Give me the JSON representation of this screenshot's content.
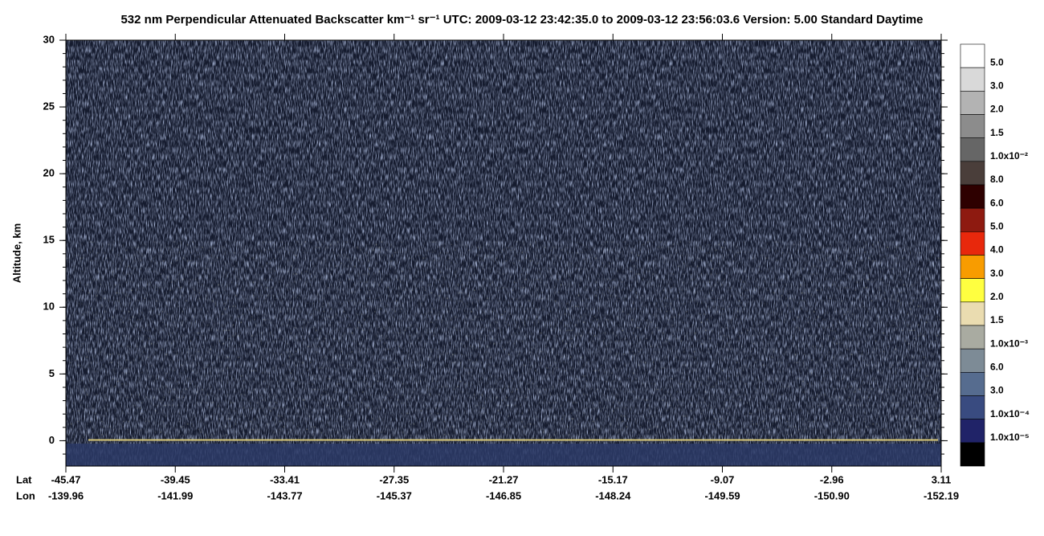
{
  "chart_data": {
    "type": "heatmap",
    "title": "532 nm Perpendicular Attenuated Backscatter km⁻¹ sr⁻¹  UTC: 2009-03-12 23:42:35.0 to 2009-03-12 23:56:03.6  Version: 5.00 Standard Daytime",
    "y_label": "Altitude, km",
    "ylim": [
      -1.9,
      30
    ],
    "yticks": [
      0,
      5,
      10,
      15,
      20,
      25,
      30
    ],
    "x_rows": [
      {
        "name": "Lat",
        "labels": [
          "-45.47",
          "-39.45",
          "-33.41",
          "-27.35",
          "-21.27",
          "-15.17",
          "-9.07",
          "-2.96",
          "3.11"
        ]
      },
      {
        "name": "Lon",
        "labels": [
          "-139.96",
          "-141.99",
          "-143.77",
          "-145.37",
          "-146.85",
          "-148.24",
          "-149.59",
          "-150.90",
          "-152.19"
        ]
      }
    ],
    "colorbar": {
      "colors": [
        "#ffffff",
        "#d9d9d9",
        "#b3b3b3",
        "#8c8c8c",
        "#666666",
        "#4a3e3a",
        "#2e0000",
        "#8e1a10",
        "#e8280c",
        "#f89c00",
        "#ffff40",
        "#eadcb0",
        "#a9aba1",
        "#7d8b96",
        "#566c8f",
        "#394b80",
        "#202368",
        "#000000"
      ],
      "labels": [
        "5.0",
        "3.0",
        "2.0",
        "1.5",
        "1.0x10⁻²",
        "8.0",
        "6.0",
        "5.0",
        "4.0",
        "3.0",
        "2.0",
        "1.5",
        "1.0x10⁻³",
        "6.0",
        "3.0",
        "1.0x10⁻⁴",
        "1.0x10⁻⁵"
      ]
    }
  }
}
